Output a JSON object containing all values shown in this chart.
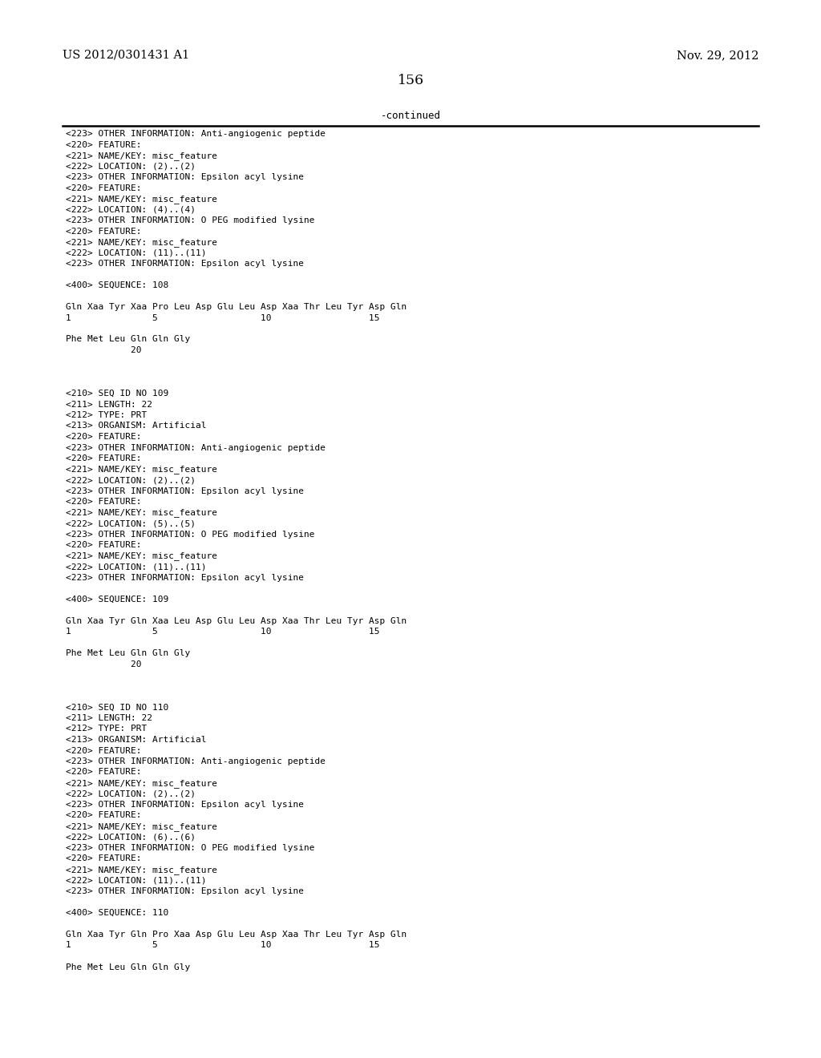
{
  "header_left": "US 2012/0301431 A1",
  "header_right": "Nov. 29, 2012",
  "page_number": "156",
  "continued_label": "-continued",
  "background_color": "#ffffff",
  "text_color": "#000000",
  "font_size": 8.0,
  "header_font_size": 10.5,
  "page_num_font_size": 12.5,
  "content_lines": [
    "<223> OTHER INFORMATION: Anti-angiogenic peptide",
    "<220> FEATURE:",
    "<221> NAME/KEY: misc_feature",
    "<222> LOCATION: (2)..(2)",
    "<223> OTHER INFORMATION: Epsilon acyl lysine",
    "<220> FEATURE:",
    "<221> NAME/KEY: misc_feature",
    "<222> LOCATION: (4)..(4)",
    "<223> OTHER INFORMATION: O PEG modified lysine",
    "<220> FEATURE:",
    "<221> NAME/KEY: misc_feature",
    "<222> LOCATION: (11)..(11)",
    "<223> OTHER INFORMATION: Epsilon acyl lysine",
    "",
    "<400> SEQUENCE: 108",
    "",
    "Gln Xaa Tyr Xaa Pro Leu Asp Glu Leu Asp Xaa Thr Leu Tyr Asp Gln",
    "1               5                   10                  15",
    "",
    "Phe Met Leu Gln Gln Gly",
    "            20",
    "",
    "",
    "",
    "<210> SEQ ID NO 109",
    "<211> LENGTH: 22",
    "<212> TYPE: PRT",
    "<213> ORGANISM: Artificial",
    "<220> FEATURE:",
    "<223> OTHER INFORMATION: Anti-angiogenic peptide",
    "<220> FEATURE:",
    "<221> NAME/KEY: misc_feature",
    "<222> LOCATION: (2)..(2)",
    "<223> OTHER INFORMATION: Epsilon acyl lysine",
    "<220> FEATURE:",
    "<221> NAME/KEY: misc_feature",
    "<222> LOCATION: (5)..(5)",
    "<223> OTHER INFORMATION: O PEG modified lysine",
    "<220> FEATURE:",
    "<221> NAME/KEY: misc_feature",
    "<222> LOCATION: (11)..(11)",
    "<223> OTHER INFORMATION: Epsilon acyl lysine",
    "",
    "<400> SEQUENCE: 109",
    "",
    "Gln Xaa Tyr Gln Xaa Leu Asp Glu Leu Asp Xaa Thr Leu Tyr Asp Gln",
    "1               5                   10                  15",
    "",
    "Phe Met Leu Gln Gln Gly",
    "            20",
    "",
    "",
    "",
    "<210> SEQ ID NO 110",
    "<211> LENGTH: 22",
    "<212> TYPE: PRT",
    "<213> ORGANISM: Artificial",
    "<220> FEATURE:",
    "<223> OTHER INFORMATION: Anti-angiogenic peptide",
    "<220> FEATURE:",
    "<221> NAME/KEY: misc_feature",
    "<222> LOCATION: (2)..(2)",
    "<223> OTHER INFORMATION: Epsilon acyl lysine",
    "<220> FEATURE:",
    "<221> NAME/KEY: misc_feature",
    "<222> LOCATION: (6)..(6)",
    "<223> OTHER INFORMATION: O PEG modified lysine",
    "<220> FEATURE:",
    "<221> NAME/KEY: misc_feature",
    "<222> LOCATION: (11)..(11)",
    "<223> OTHER INFORMATION: Epsilon acyl lysine",
    "",
    "<400> SEQUENCE: 110",
    "",
    "Gln Xaa Tyr Gln Pro Xaa Asp Glu Leu Asp Xaa Thr Leu Tyr Asp Gln",
    "1               5                   10                  15",
    "",
    "Phe Met Leu Gln Gln Gly"
  ]
}
